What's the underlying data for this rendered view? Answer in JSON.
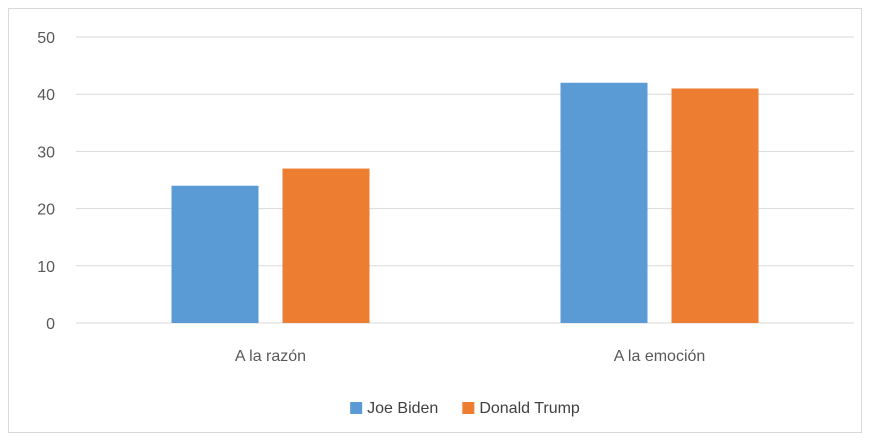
{
  "chart_data": {
    "type": "bar",
    "categories": [
      "A la razón",
      "A la emoción"
    ],
    "series": [
      {
        "name": "Joe Biden",
        "values": [
          24,
          42
        ],
        "color": "#5b9bd5"
      },
      {
        "name": "Donald Trump",
        "values": [
          27,
          41
        ],
        "color": "#ed7d31"
      }
    ],
    "y_ticks": [
      "0",
      "10",
      "20",
      "30",
      "40",
      "50"
    ],
    "ylim": [
      0,
      50
    ],
    "grid": true,
    "legend_position": "bottom",
    "title": "",
    "xlabel": "",
    "ylabel": ""
  }
}
